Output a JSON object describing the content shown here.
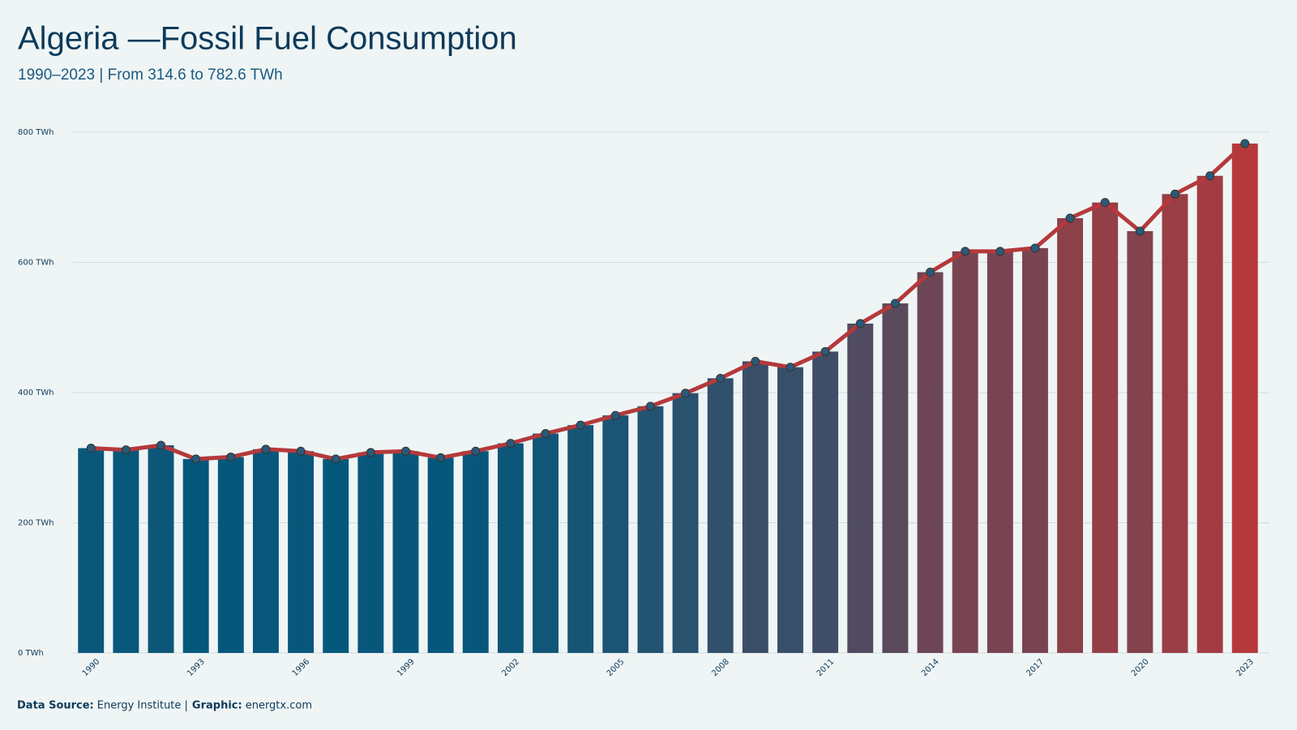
{
  "chart_data": {
    "type": "bar-line",
    "title": "Algeria —Fossil Fuel Consumption",
    "subtitle": "1990–2023 | From 314.6 to 782.6 TWh",
    "x": [
      1990,
      1991,
      1992,
      1993,
      1994,
      1995,
      1996,
      1997,
      1998,
      1999,
      2000,
      2001,
      2002,
      2003,
      2004,
      2005,
      2006,
      2007,
      2008,
      2009,
      2010,
      2011,
      2012,
      2013,
      2014,
      2015,
      2016,
      2017,
      2018,
      2019,
      2020,
      2021,
      2022,
      2023
    ],
    "values": [
      314.6,
      312,
      319,
      298,
      301,
      313,
      310,
      298,
      308,
      310,
      300,
      310,
      322,
      337,
      350,
      365,
      379,
      399,
      422,
      448,
      439,
      463,
      506,
      537,
      585,
      617,
      617,
      622,
      668,
      692,
      648,
      705,
      733,
      782.6
    ],
    "xlim": [
      1989.6,
      2023.4
    ],
    "xticks": [
      1990,
      1993,
      1996,
      1999,
      2002,
      2005,
      2008,
      2011,
      2014,
      2017,
      2020,
      2023
    ],
    "ylim": [
      0,
      800
    ],
    "yticks": [
      {
        "value": 0,
        "label": "0 TWh"
      },
      {
        "value": 200,
        "label": "200 TWh"
      },
      {
        "value": 400,
        "label": "400 TWh"
      },
      {
        "value": 600,
        "label": "600 TWh"
      },
      {
        "value": 800,
        "label": "800 TWh"
      }
    ],
    "grid": true,
    "color_low": "#04587c",
    "color_high": "#b5393b",
    "line_color": "#b5393b",
    "marker_color": "#2a5a78",
    "footer": [
      {
        "label": "Data Source:",
        "text": "Energy Institute |"
      },
      {
        "label": "Graphic:",
        "text": "energtx.com"
      }
    ]
  }
}
